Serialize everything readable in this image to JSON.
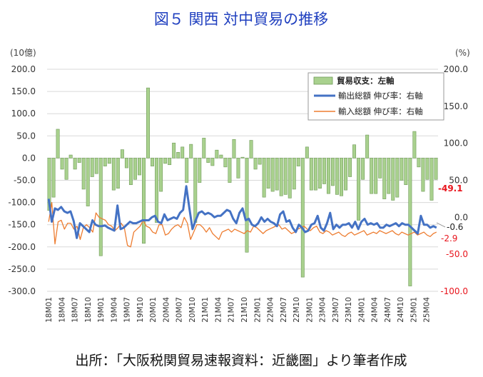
{
  "chart_data": {
    "type": "bar+line",
    "title": "図５ 関西 対中貿易の推移",
    "left_unit": "(10億)",
    "right_unit": "(%)",
    "left_axis": {
      "min": -300,
      "max": 200,
      "ticks": [
        "200.0",
        "150.0",
        "100.0",
        "50.0",
        "0.0",
        "-50.0",
        "-100.0",
        "-150.0",
        "-200.0",
        "-250.0",
        "-300.0"
      ]
    },
    "right_axis": {
      "min": -100,
      "max": 200,
      "ticks": [
        "200.0",
        "150.0",
        "100.0",
        "50.0",
        "0.0",
        "-50.0",
        "-100.0"
      ]
    },
    "x_tick_labels": [
      "18M01",
      "18M04",
      "18M07",
      "18M10",
      "19M01",
      "19M04",
      "19M07",
      "19M10",
      "20M01",
      "20M04",
      "20M07",
      "20M10",
      "21M01",
      "21M04",
      "21M07",
      "21M10",
      "22M01",
      "22M04",
      "22M07",
      "22M10",
      "23M01",
      "23M04",
      "23M07",
      "23M10",
      "24M01",
      "24M04",
      "24M07",
      "24M10",
      "25M01",
      "25M04"
    ],
    "series": [
      {
        "name": "貿易収支：左軸",
        "kind": "bar",
        "color": "#a9d18e",
        "values": [
          -118,
          -88,
          65,
          -25,
          -48,
          7,
          -25,
          -10,
          -70,
          -108,
          -42,
          -35,
          -220,
          -18,
          -12,
          -72,
          -68,
          19,
          -22,
          -60,
          -48,
          -38,
          -192,
          158,
          -18,
          -145,
          -75,
          -12,
          -15,
          34,
          13,
          25,
          -55,
          31,
          -145,
          -55,
          45,
          -10,
          -17,
          18,
          7,
          -20,
          -55,
          42,
          -45,
          2,
          -212,
          40,
          -25,
          -14,
          -88,
          -68,
          -75,
          -72,
          -85,
          -82,
          -90,
          -70,
          -18,
          -268,
          25,
          -72,
          -72,
          -68,
          -58,
          -80,
          -62,
          -82,
          -85,
          -72,
          -42,
          30,
          -140,
          -48,
          52,
          -80,
          -80,
          -45,
          -92,
          -80,
          -95,
          -88,
          -50,
          -60,
          -288,
          60,
          -20,
          -75,
          -48,
          -95,
          -48
        ],
        "x_index_start": 0
      },
      {
        "name": "輸出総額 伸び率：右軸",
        "kind": "line",
        "color": "#4472c4",
        "values": [
          22,
          -8,
          10,
          5,
          2,
          8,
          3,
          4,
          1,
          -22,
          -3,
          -8,
          -12,
          -15,
          5,
          -5,
          -8,
          -10,
          -10,
          -9,
          -13,
          -12,
          -15,
          -3,
          -8,
          -13,
          -14,
          -10,
          -9,
          -15,
          -16,
          -12,
          -10,
          -8,
          -5,
          -10,
          -12,
          -4,
          -12,
          -12,
          -9,
          -5,
          -4,
          2,
          -10,
          -3,
          -2,
          2,
          -5,
          -7,
          -9,
          -8,
          -6,
          -6,
          -3,
          -5,
          -7,
          -8,
          -10,
          -8,
          -6,
          -8,
          -14,
          -12,
          -10,
          -12,
          -8,
          -8,
          -13,
          -12,
          -10,
          -12,
          -13,
          -10,
          -9,
          -7,
          -6,
          -7,
          -9,
          -8,
          -6,
          -9,
          -9,
          -10,
          -11,
          -12,
          -14,
          -12,
          -12,
          -15,
          -10,
          -8,
          -10,
          -8,
          -10,
          -11,
          -13,
          -12,
          -14,
          -15,
          -18,
          -15,
          -8,
          -10,
          -15
        ],
        "x_index_start": 0
      }
    ],
    "legend": {
      "placement": "top-right"
    },
    "annotations": [
      {
        "text": "-49.1",
        "series": "bars"
      },
      {
        "text": "-0.6",
        "series": "export"
      },
      {
        "text": "-2.9",
        "series": "import"
      }
    ]
  },
  "legend_items": {
    "bar": "貿易収支：左軸",
    "export": "輸出総額 伸び率：右軸",
    "import": "輸入総額 伸び率：右軸"
  },
  "export_values": [
    25,
    -6,
    12,
    10,
    14,
    8,
    6,
    8,
    -5,
    -28,
    -8,
    -12,
    -16,
    -20,
    -4,
    -10,
    -12,
    -12,
    -11,
    -14,
    -16,
    -18,
    16,
    -16,
    -14,
    -10,
    -6,
    -8,
    -8,
    -6,
    -4,
    -4,
    -4,
    0,
    2,
    -6,
    -8,
    4,
    -4,
    -2,
    0,
    -2,
    6,
    10,
    42,
    12,
    -16,
    -4,
    6,
    8,
    4,
    6,
    4,
    0,
    2,
    2,
    6,
    10,
    8,
    -2,
    -8,
    6,
    12,
    -4,
    -2,
    -10,
    -12,
    -8,
    0,
    -6,
    -2,
    -6,
    -8,
    -12,
    4,
    8,
    -6,
    -4,
    -14,
    -20,
    -10,
    -14,
    -20,
    -18,
    -10,
    -8,
    2,
    -14,
    -18,
    -8,
    6,
    -16,
    -10,
    -14,
    -10,
    -10,
    -8,
    -14,
    -6,
    -16,
    -6,
    -2,
    -10,
    -8,
    -10,
    -8,
    -14,
    -14,
    -10,
    -12,
    -10,
    -8,
    -12,
    -8,
    -10,
    -10,
    -14,
    -18,
    -22,
    2,
    -10,
    -10,
    -14,
    -12,
    -14
  ],
  "import_values": [
    -6,
    20,
    -36,
    -6,
    -4,
    -16,
    -8,
    -8,
    -16,
    -12,
    -30,
    -14,
    -10,
    -14,
    -20,
    6,
    0,
    -2,
    -4,
    -10,
    -12,
    -18,
    -14,
    -8,
    -14,
    -38,
    -40,
    -20,
    -16,
    -12,
    -4,
    -12,
    -14,
    -20,
    -22,
    -10,
    -10,
    -24,
    -22,
    -16,
    -12,
    -10,
    -14,
    0,
    -8,
    -30,
    -20,
    -10,
    -10,
    -14,
    -20,
    -14,
    -22,
    -26,
    -30,
    -20,
    -18,
    -16,
    -20,
    -16,
    -18,
    -20,
    -22,
    -18,
    -20,
    -12,
    -14,
    -18,
    -22,
    -18,
    -16,
    -14,
    -12,
    -10,
    -16,
    -14,
    -18,
    -22,
    -20,
    -16,
    -14,
    -12,
    -16,
    -18,
    -14,
    -12,
    -20,
    -22,
    -18,
    -20,
    -24,
    -22,
    -20,
    -24,
    -26,
    -22,
    -20,
    -24,
    -22,
    -20,
    -18,
    -24,
    -22,
    -20,
    -22,
    -18,
    -20,
    -22,
    -20,
    -18,
    -22,
    -24,
    -20,
    -22,
    -24,
    -22,
    -20,
    -24,
    -22,
    -20,
    -24,
    -26,
    -22,
    -20
  ],
  "source_note": "出所：「大阪税関貿易速報資料：近畿圏」より筆者作成"
}
